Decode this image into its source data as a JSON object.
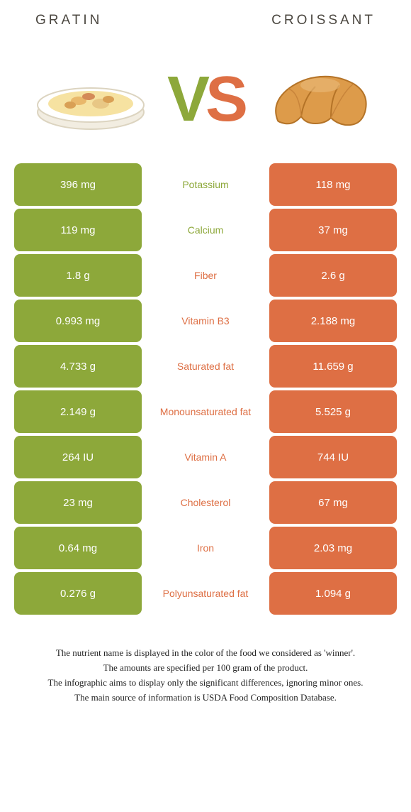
{
  "colors": {
    "left": "#8da83a",
    "right": "#de6f44",
    "bg": "#ffffff",
    "header_text": "#4b4740"
  },
  "header": {
    "left": "Gratin",
    "right": "Croissant"
  },
  "vs": {
    "v": "V",
    "s": "S"
  },
  "nutrients": [
    {
      "label": "Potassium",
      "left": "396 mg",
      "right": "118 mg",
      "winner": "left"
    },
    {
      "label": "Calcium",
      "left": "119 mg",
      "right": "37 mg",
      "winner": "left"
    },
    {
      "label": "Fiber",
      "left": "1.8 g",
      "right": "2.6 g",
      "winner": "right"
    },
    {
      "label": "Vitamin B3",
      "left": "0.993 mg",
      "right": "2.188 mg",
      "winner": "right"
    },
    {
      "label": "Saturated fat",
      "left": "4.733 g",
      "right": "11.659 g",
      "winner": "right"
    },
    {
      "label": "Monounsaturated fat",
      "left": "2.149 g",
      "right": "5.525 g",
      "winner": "right"
    },
    {
      "label": "Vitamin A",
      "left": "264 IU",
      "right": "744 IU",
      "winner": "right"
    },
    {
      "label": "Cholesterol",
      "left": "23 mg",
      "right": "67 mg",
      "winner": "right"
    },
    {
      "label": "Iron",
      "left": "0.64 mg",
      "right": "2.03 mg",
      "winner": "right"
    },
    {
      "label": "Polyunsaturated fat",
      "left": "0.276 g",
      "right": "1.094 g",
      "winner": "right"
    }
  ],
  "footnotes": [
    "The nutrient name is displayed in the color of the food we considered as 'winner'.",
    "The amounts are specified per 100 gram of the product.",
    "The infographic aims to display only the significant differences, ignoring minor ones.",
    "The main source of information is USDA Food Composition Database."
  ]
}
